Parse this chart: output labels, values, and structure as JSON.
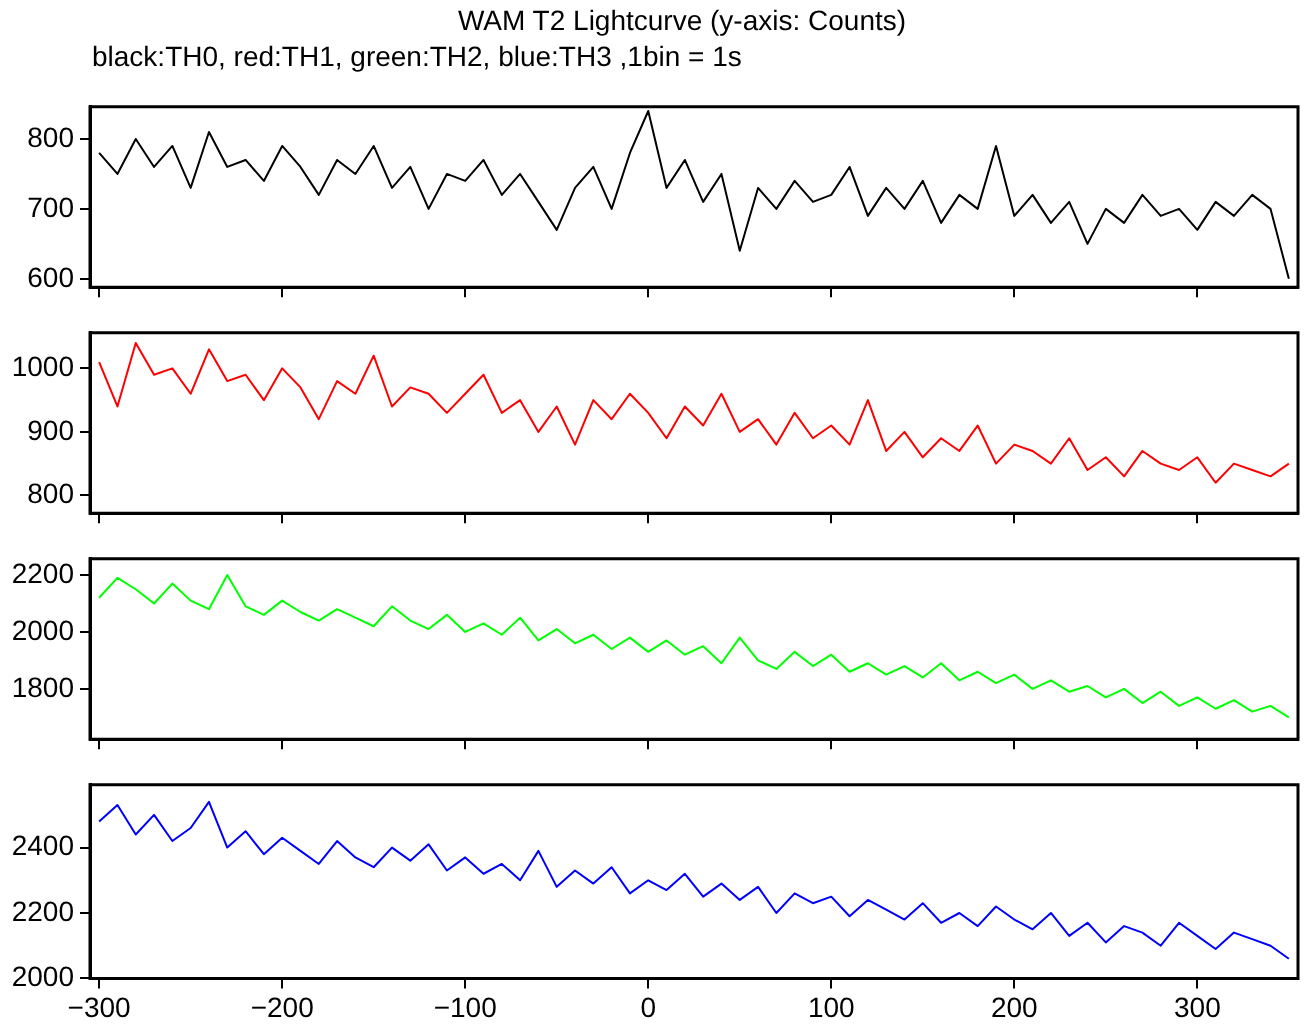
{
  "chart_data": [
    {
      "type": "line",
      "title": "WAM T2 Lightcurve (y-axis: Counts)",
      "subtitle": "black:TH0, red:TH1, green:TH2, blue:TH3 ,1bin = 1s",
      "x": [
        -300,
        -290,
        -280,
        -270,
        -260,
        -250,
        -240,
        -230,
        -220,
        -210,
        -200,
        -190,
        -180,
        -170,
        -160,
        -150,
        -140,
        -130,
        -120,
        -110,
        -100,
        -90,
        -80,
        -70,
        -60,
        -50,
        -40,
        -30,
        -20,
        -10,
        0,
        10,
        20,
        30,
        40,
        50,
        60,
        70,
        80,
        90,
        100,
        110,
        120,
        130,
        140,
        150,
        160,
        170,
        180,
        190,
        200,
        210,
        220,
        230,
        240,
        250,
        260,
        270,
        280,
        290,
        300,
        310,
        320,
        330,
        340,
        350
      ],
      "xlim": [
        -305,
        355
      ],
      "xticks": [
        -300,
        -200,
        -100,
        0,
        100,
        200,
        300
      ],
      "ylim": [
        588,
        846
      ],
      "yticks": [
        600,
        700,
        800
      ],
      "tick_labels": "y",
      "series": [
        {
          "color": "#000000",
          "values": [
            780,
            750,
            800,
            760,
            790,
            730,
            810,
            760,
            770,
            740,
            790,
            760,
            720,
            770,
            750,
            790,
            730,
            760,
            700,
            750,
            740,
            770,
            720,
            750,
            710,
            670,
            730,
            760,
            700,
            780,
            840,
            730,
            770,
            710,
            750,
            640,
            730,
            700,
            740,
            710,
            720,
            760,
            690,
            730,
            700,
            740,
            680,
            720,
            700,
            790,
            690,
            720,
            680,
            710,
            650,
            700,
            680,
            720,
            690,
            700,
            670,
            710,
            690,
            720,
            700,
            600
          ]
        }
      ]
    },
    {
      "type": "line",
      "x": [
        -300,
        -290,
        -280,
        -270,
        -260,
        -250,
        -240,
        -230,
        -220,
        -210,
        -200,
        -190,
        -180,
        -170,
        -160,
        -150,
        -140,
        -130,
        -120,
        -110,
        -100,
        -90,
        -80,
        -70,
        -60,
        -50,
        -40,
        -30,
        -20,
        -10,
        0,
        10,
        20,
        30,
        40,
        50,
        60,
        70,
        80,
        90,
        100,
        110,
        120,
        130,
        140,
        150,
        160,
        170,
        180,
        190,
        200,
        210,
        220,
        230,
        240,
        250,
        260,
        270,
        280,
        290,
        300,
        310,
        320,
        330,
        340,
        350
      ],
      "xlim": [
        -305,
        355
      ],
      "xticks": [
        -300,
        -200,
        -100,
        0,
        100,
        200,
        300
      ],
      "ylim": [
        772,
        1056
      ],
      "yticks": [
        800,
        900,
        1000
      ],
      "tick_labels": "y",
      "series": [
        {
          "color": "#ff0000",
          "values": [
            1010,
            940,
            1040,
            990,
            1000,
            960,
            1030,
            980,
            990,
            950,
            1000,
            970,
            920,
            980,
            960,
            1020,
            940,
            970,
            960,
            930,
            960,
            990,
            930,
            950,
            900,
            940,
            880,
            950,
            920,
            960,
            930,
            890,
            940,
            910,
            960,
            900,
            920,
            880,
            930,
            890,
            910,
            880,
            950,
            870,
            900,
            860,
            890,
            870,
            910,
            850,
            880,
            870,
            850,
            890,
            840,
            860,
            830,
            870,
            850,
            840,
            860,
            820,
            850,
            840,
            830,
            850
          ]
        }
      ]
    },
    {
      "type": "line",
      "x": [
        -300,
        -290,
        -280,
        -270,
        -260,
        -250,
        -240,
        -230,
        -220,
        -210,
        -200,
        -190,
        -180,
        -170,
        -160,
        -150,
        -140,
        -130,
        -120,
        -110,
        -100,
        -90,
        -80,
        -70,
        -60,
        -50,
        -40,
        -30,
        -20,
        -10,
        0,
        10,
        20,
        30,
        40,
        50,
        60,
        70,
        80,
        90,
        100,
        110,
        120,
        130,
        140,
        150,
        160,
        170,
        180,
        190,
        200,
        210,
        220,
        230,
        240,
        250,
        260,
        270,
        280,
        290,
        300,
        310,
        320,
        330,
        340,
        350
      ],
      "xlim": [
        -305,
        355
      ],
      "xticks": [
        -300,
        -200,
        -100,
        0,
        100,
        200,
        300
      ],
      "ylim": [
        1623,
        2257
      ],
      "yticks": [
        1800,
        2000,
        2200
      ],
      "tick_labels": "y",
      "series": [
        {
          "color": "#00ff00",
          "values": [
            2120,
            2190,
            2150,
            2100,
            2170,
            2110,
            2080,
            2200,
            2090,
            2060,
            2110,
            2070,
            2040,
            2080,
            2050,
            2020,
            2090,
            2040,
            2010,
            2060,
            2000,
            2030,
            1990,
            2050,
            1970,
            2010,
            1960,
            1990,
            1940,
            1980,
            1930,
            1970,
            1920,
            1950,
            1890,
            1980,
            1900,
            1870,
            1930,
            1880,
            1920,
            1860,
            1890,
            1850,
            1880,
            1840,
            1890,
            1830,
            1860,
            1820,
            1850,
            1800,
            1830,
            1790,
            1810,
            1770,
            1800,
            1750,
            1790,
            1740,
            1770,
            1730,
            1760,
            1720,
            1740,
            1700
          ]
        }
      ]
    },
    {
      "type": "line",
      "x": [
        -300,
        -290,
        -280,
        -270,
        -260,
        -250,
        -240,
        -230,
        -220,
        -210,
        -200,
        -190,
        -180,
        -170,
        -160,
        -150,
        -140,
        -130,
        -120,
        -110,
        -100,
        -90,
        -80,
        -70,
        -60,
        -50,
        -40,
        -30,
        -20,
        -10,
        0,
        10,
        20,
        30,
        40,
        50,
        60,
        70,
        80,
        90,
        100,
        110,
        120,
        130,
        140,
        150,
        160,
        170,
        180,
        190,
        200,
        210,
        220,
        230,
        240,
        250,
        260,
        270,
        280,
        290,
        300,
        310,
        320,
        330,
        340,
        350
      ],
      "xlim": [
        -305,
        355
      ],
      "xticks": [
        -300,
        -200,
        -100,
        0,
        100,
        200,
        300
      ],
      "ylim": [
        2000,
        2592
      ],
      "yticks": [
        2000,
        2200,
        2400
      ],
      "series": [
        {
          "color": "#0000ff",
          "values": [
            2480,
            2530,
            2440,
            2500,
            2420,
            2460,
            2540,
            2400,
            2450,
            2380,
            2430,
            2390,
            2350,
            2420,
            2370,
            2340,
            2400,
            2360,
            2410,
            2330,
            2370,
            2320,
            2350,
            2300,
            2390,
            2280,
            2330,
            2290,
            2340,
            2260,
            2300,
            2270,
            2320,
            2250,
            2290,
            2240,
            2280,
            2200,
            2260,
            2230,
            2250,
            2190,
            2240,
            2210,
            2180,
            2230,
            2170,
            2200,
            2160,
            2220,
            2180,
            2150,
            2200,
            2130,
            2170,
            2110,
            2160,
            2140,
            2100,
            2170,
            2130,
            2090,
            2140,
            2120,
            2100,
            2060
          ]
        }
      ]
    }
  ]
}
